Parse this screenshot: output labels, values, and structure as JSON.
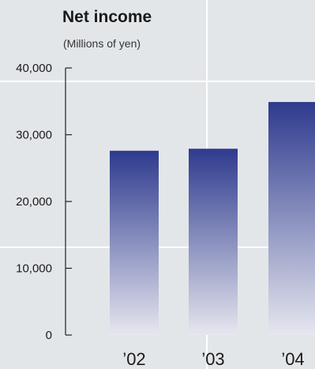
{
  "chart_data": {
    "type": "bar",
    "title": "Net income",
    "subtitle": "(Millions of yen)",
    "categories": [
      "’02",
      "’03",
      "’04"
    ],
    "values": [
      27600,
      27900,
      34900
    ],
    "ylim": [
      0,
      40000
    ],
    "yticks": [
      0,
      10000,
      20000,
      30000,
      40000
    ],
    "ytick_labels": [
      "0",
      "10,000",
      "20,000",
      "30,000",
      "40,000"
    ],
    "grid": true,
    "colors": {
      "bar_top": "#2e3a8e",
      "bar_bottom": "#e6e7ef",
      "background": "#e3e6e9",
      "grid": "#ffffff"
    }
  }
}
